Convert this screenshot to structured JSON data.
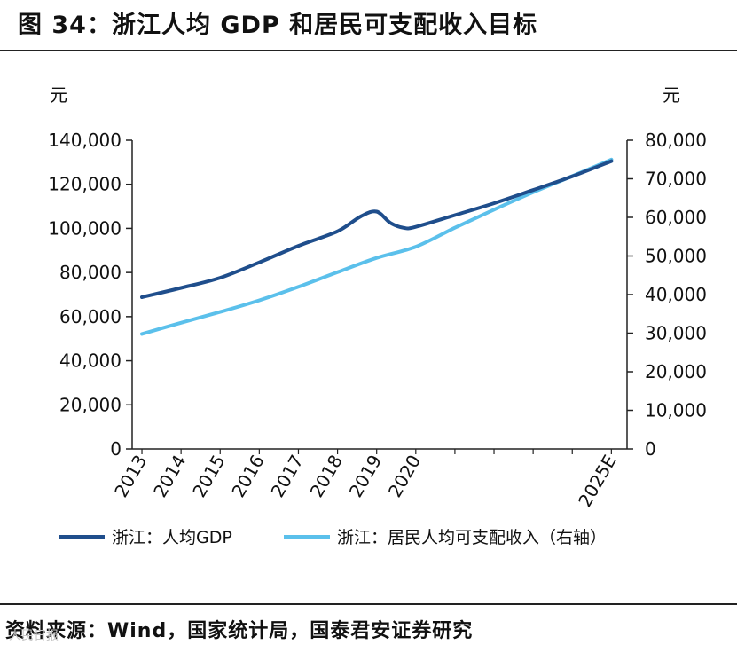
{
  "header": {
    "title": "图 34：浙江人均 GDP 和居民可支配收入目标"
  },
  "footer": {
    "source": "资料来源：Wind，国家统计局，国泰君安证券研究",
    "watermark": "人民日报"
  },
  "chart_data": {
    "type": "line",
    "title": "浙江人均 GDP 和居民可支配收入目标",
    "left_unit": "元",
    "right_unit": "元",
    "categories": [
      "2013",
      "2014",
      "2015",
      "2016",
      "2017",
      "2018",
      "2019",
      "2020",
      "2025E"
    ],
    "x": [
      2013,
      2014,
      2015,
      2016,
      2017,
      2018,
      2019,
      2020,
      2025
    ],
    "xlim": [
      2012.75,
      2025.4
    ],
    "left_axis": {
      "ylim": [
        0,
        140000
      ],
      "ticks": [
        "0",
        "20,000",
        "40,000",
        "60,000",
        "80,000",
        "100,000",
        "120,000",
        "140,000"
      ]
    },
    "right_axis": {
      "ylim": [
        0,
        80000
      ],
      "ticks": [
        "0",
        "10,000",
        "20,000",
        "30,000",
        "40,000",
        "50,000",
        "60,000",
        "70,000",
        "80,000"
      ]
    },
    "series": [
      {
        "name": "浙江：人均GDP",
        "axis": "left",
        "color": "#1f4e8c",
        "x": [
          2013.0,
          2014.0,
          2015.0,
          2016.0,
          2017.0,
          2018.0,
          2018.6,
          2019.0,
          2019.35,
          2019.7,
          2020.0,
          2021.0,
          2022.0,
          2023.0,
          2024.0,
          2025.0
        ],
        "values": [
          68800,
          73000,
          77600,
          84600,
          92100,
          98700,
          105500,
          107600,
          102500,
          100200,
          100700,
          106000,
          111400,
          117400,
          123600,
          130500
        ]
      },
      {
        "name": "浙江：居民人均可支配收入（右轴）",
        "axis": "right",
        "color": "#5bc0eb",
        "x": [
          2013.0,
          2014.0,
          2015.0,
          2016.0,
          2017.0,
          2018.0,
          2019.0,
          2020.0,
          2021.0,
          2022.0,
          2023.0,
          2024.0,
          2025.0
        ],
        "values": [
          29800,
          32700,
          35500,
          38500,
          42000,
          45800,
          49500,
          52400,
          57300,
          62000,
          66500,
          70700,
          75000
        ]
      }
    ],
    "legend": {
      "position": "bottom",
      "items": [
        "浙江：人均GDP",
        "浙江：居民人均可支配收入（右轴）"
      ]
    }
  }
}
